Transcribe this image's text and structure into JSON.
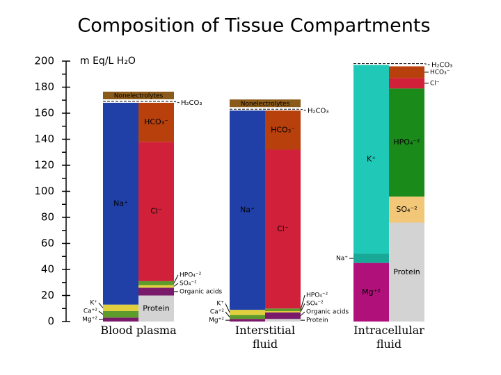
{
  "chart_data": {
    "type": "stacked-bar",
    "title": "Composition of Tissue Compartments",
    "y_label": "m Eq/L H₂O",
    "ylim": [
      0,
      200
    ],
    "yticks": [
      0,
      20,
      40,
      60,
      80,
      100,
      120,
      140,
      160,
      180,
      200
    ],
    "yminorticks": [
      10,
      30,
      50,
      70,
      90,
      110,
      130,
      150,
      170,
      190
    ],
    "groups": [
      {
        "name": "Blood plasma",
        "top_labels": [
          "Nonelectrolytes",
          "H₂CO₃"
        ],
        "columns": [
          [
            {
              "name": "Mg⁺²",
              "color": "#7a1a6a",
              "value": 3
            },
            {
              "name": "Ca⁺²",
              "color": "#5c9b2c",
              "value": 5
            },
            {
              "name": "K⁺",
              "color": "#e0d040",
              "value": 5
            },
            {
              "name": "Na⁺",
              "color": "#2040a8",
              "value": 155
            }
          ],
          [
            {
              "name": "Protein",
              "color": "#d3d3d3",
              "value": 20
            },
            {
              "name": "Organic acids",
              "color": "#7a1a6a",
              "value": 6
            },
            {
              "name": "SO₄⁻²",
              "color": "#e0d040",
              "value": 2
            },
            {
              "name": "HPO₄⁻²",
              "color": "#5c9b2c",
              "value": 3
            },
            {
              "name": "Cl⁻",
              "color": "#d0203a",
              "value": 107
            },
            {
              "name": "HCO₃⁻",
              "color": "#b8400c",
              "value": 30
            }
          ]
        ]
      },
      {
        "name": "Interstitial fluid",
        "top_labels": [
          "Nonelectrolytes",
          "H₂CO₃"
        ],
        "columns": [
          [
            {
              "name": "Mg⁺²",
              "color": "#7a1a6a",
              "value": 2
            },
            {
              "name": "Ca⁺²",
              "color": "#5c9b2c",
              "value": 3
            },
            {
              "name": "K⁺",
              "color": "#e0d040",
              "value": 4
            },
            {
              "name": "Na⁺",
              "color": "#2040a8",
              "value": 153
            }
          ],
          [
            {
              "name": "Protein",
              "color": "#d3d3d3",
              "value": 2
            },
            {
              "name": "Organic acids",
              "color": "#7a1a6a",
              "value": 5
            },
            {
              "name": "SO₄⁻²",
              "color": "#e0d040",
              "value": 1
            },
            {
              "name": "HPO₄⁻²",
              "color": "#5c9b2c",
              "value": 2
            },
            {
              "name": "Cl⁻",
              "color": "#d0203a",
              "value": 122
            },
            {
              "name": "HCO₃⁻",
              "color": "#b8400c",
              "value": 30
            }
          ]
        ]
      },
      {
        "name": "Intracellular fluid",
        "top_labels": [
          "H₂CO₃"
        ],
        "columns": [
          [
            {
              "name": "Mg⁺²",
              "color": "#b0107a",
              "value": 45
            },
            {
              "name": "Na⁺",
              "color": "#18a898",
              "value": 7
            },
            {
              "name": "K⁺",
              "color": "#20c8b8",
              "value": 145
            }
          ],
          [
            {
              "name": "Protein",
              "color": "#d3d3d3",
              "value": 76
            },
            {
              "name": "SO₄⁻²",
              "color": "#f2c777",
              "value": 20
            },
            {
              "name": "HPO₄⁻²",
              "color": "#1a8a1a",
              "value": 83
            },
            {
              "name": "Cl⁻",
              "color": "#d0203a",
              "value": 8
            },
            {
              "name": "HCO₃⁻",
              "color": "#b8400c",
              "value": 9
            }
          ]
        ]
      }
    ]
  }
}
